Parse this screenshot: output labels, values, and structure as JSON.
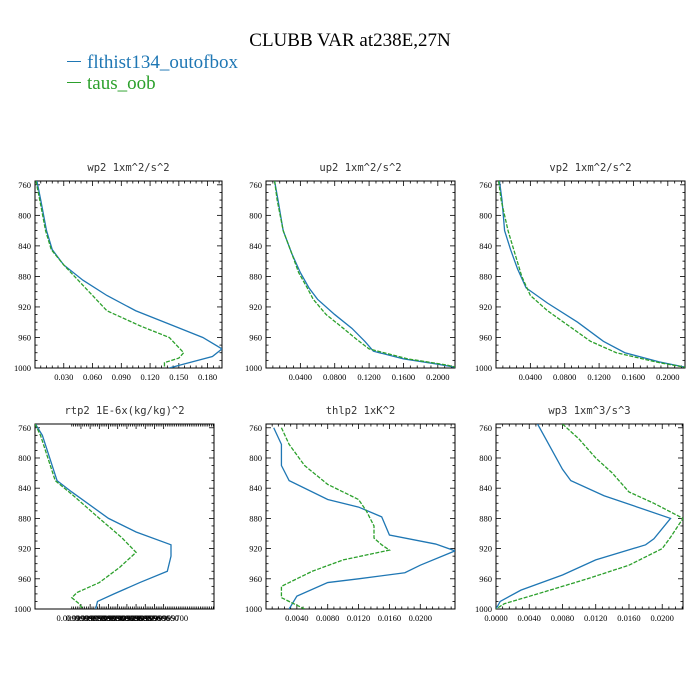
{
  "title": "CLUBB VAR at238E,27N",
  "legend": [
    {
      "label": "flthist134_outofbox",
      "color": "#1f77b4"
    },
    {
      "label": "taus_oob",
      "color": "#2ca02c",
      "dashed": true
    }
  ],
  "chart_data": [
    {
      "type": "line",
      "title": "wp2  1xm^2/s^2",
      "ylim": [
        1000,
        755
      ],
      "xlim": [
        0,
        0.195
      ],
      "yticks": [
        760,
        800,
        840,
        880,
        920,
        960,
        1000
      ],
      "xticks": [
        {
          "v": 0.03,
          "label": "0.030"
        },
        {
          "v": 0.06,
          "label": "0.060"
        },
        {
          "v": 0.09,
          "label": "0.090"
        },
        {
          "v": 0.12,
          "label": "0.120"
        },
        {
          "v": 0.15,
          "label": "0.150"
        },
        {
          "v": 0.18,
          "label": "0.180"
        }
      ],
      "series": [
        {
          "name": "flthist134_outofbox",
          "points": [
            [
              0.002,
              755
            ],
            [
              0.006,
              780
            ],
            [
              0.012,
              820
            ],
            [
              0.018,
              845
            ],
            [
              0.03,
              865
            ],
            [
              0.05,
              885
            ],
            [
              0.075,
              905
            ],
            [
              0.105,
              925
            ],
            [
              0.145,
              945
            ],
            [
              0.175,
              960
            ],
            [
              0.195,
              975
            ],
            [
              0.185,
              985
            ],
            [
              0.155,
              995
            ],
            [
              0.14,
              1000
            ]
          ]
        },
        {
          "name": "taus_oob",
          "points": [
            [
              0.001,
              755
            ],
            [
              0.005,
              780
            ],
            [
              0.011,
              820
            ],
            [
              0.017,
              845
            ],
            [
              0.03,
              865
            ],
            [
              0.045,
              885
            ],
            [
              0.06,
              905
            ],
            [
              0.075,
              925
            ],
            [
              0.11,
              945
            ],
            [
              0.14,
              960
            ],
            [
              0.155,
              980
            ],
            [
              0.15,
              987
            ],
            [
              0.135,
              993
            ],
            [
              0.135,
              1000
            ]
          ]
        }
      ]
    },
    {
      "type": "line",
      "title": "up2  1xm^2/s^2",
      "ylim": [
        1000,
        755
      ],
      "xlim": [
        0,
        0.22
      ],
      "yticks": [
        760,
        800,
        840,
        880,
        920,
        960,
        1000
      ],
      "xticks": [
        {
          "v": 0.04,
          "label": "0.0400"
        },
        {
          "v": 0.08,
          "label": "0.0800"
        },
        {
          "v": 0.12,
          "label": "0.1200"
        },
        {
          "v": 0.16,
          "label": "0.1600"
        },
        {
          "v": 0.2,
          "label": "0.2000"
        }
      ],
      "series": [
        {
          "name": "flthist134_outofbox",
          "points": [
            [
              0.01,
              755
            ],
            [
              0.014,
              780
            ],
            [
              0.02,
              820
            ],
            [
              0.03,
              850
            ],
            [
              0.04,
              875
            ],
            [
              0.05,
              895
            ],
            [
              0.06,
              910
            ],
            [
              0.08,
              930
            ],
            [
              0.1,
              948
            ],
            [
              0.115,
              965
            ],
            [
              0.125,
              978
            ],
            [
              0.16,
              988
            ],
            [
              0.2,
              995
            ],
            [
              0.225,
              1000
            ]
          ]
        },
        {
          "name": "taus_oob",
          "points": [
            [
              0.01,
              755
            ],
            [
              0.013,
              780
            ],
            [
              0.02,
              820
            ],
            [
              0.03,
              850
            ],
            [
              0.038,
              875
            ],
            [
              0.048,
              895
            ],
            [
              0.055,
              910
            ],
            [
              0.07,
              930
            ],
            [
              0.09,
              948
            ],
            [
              0.105,
              962
            ],
            [
              0.12,
              975
            ],
            [
              0.165,
              988
            ],
            [
              0.21,
              996
            ],
            [
              0.225,
              1000
            ]
          ]
        }
      ]
    },
    {
      "type": "line",
      "title": "vp2  1xm^2/s^2",
      "ylim": [
        1000,
        755
      ],
      "xlim": [
        0,
        0.22
      ],
      "yticks": [
        760,
        800,
        840,
        880,
        920,
        960,
        1000
      ],
      "xticks": [
        {
          "v": 0.04,
          "label": "0.0400"
        },
        {
          "v": 0.08,
          "label": "0.0800"
        },
        {
          "v": 0.12,
          "label": "0.1200"
        },
        {
          "v": 0.16,
          "label": "0.1600"
        },
        {
          "v": 0.2,
          "label": "0.2000"
        }
      ],
      "series": [
        {
          "name": "flthist134_outofbox",
          "points": [
            [
              0.004,
              755
            ],
            [
              0.007,
              780
            ],
            [
              0.01,
              820
            ],
            [
              0.017,
              845
            ],
            [
              0.025,
              870
            ],
            [
              0.035,
              895
            ],
            [
              0.06,
              915
            ],
            [
              0.095,
              940
            ],
            [
              0.125,
              965
            ],
            [
              0.15,
              980
            ],
            [
              0.19,
              992
            ],
            [
              0.225,
              1000
            ]
          ]
        },
        {
          "name": "taus_oob",
          "points": [
            [
              0.003,
              755
            ],
            [
              0.006,
              780
            ],
            [
              0.01,
              800
            ],
            [
              0.014,
              820
            ],
            [
              0.022,
              850
            ],
            [
              0.03,
              880
            ],
            [
              0.04,
              905
            ],
            [
              0.06,
              925
            ],
            [
              0.085,
              945
            ],
            [
              0.11,
              965
            ],
            [
              0.14,
              980
            ],
            [
              0.19,
              993
            ],
            [
              0.225,
              1000
            ]
          ]
        }
      ]
    },
    {
      "type": "line",
      "title": "rtp2  1E-6x(kg/kg)^2",
      "ylim": [
        1000,
        755
      ],
      "xlim": [
        0.0099999,
        0.0099999974
      ],
      "yticks": [
        760,
        800,
        840,
        880,
        920,
        960,
        1000
      ],
      "xticks": [
        {
          "v": 0.009999925,
          "label": "0.0099999250"
        },
        {
          "v": 0.00999993,
          "label": "0.0099999300"
        },
        {
          "v": 0.009999935,
          "label": "0.0099999350"
        },
        {
          "v": 0.00999994,
          "label": "0.0099999400"
        },
        {
          "v": 0.009999945,
          "label": "0.0099999450"
        },
        {
          "v": 0.00999995,
          "label": "0.0099999500"
        },
        {
          "v": 0.009999955,
          "label": "0.0099999550"
        },
        {
          "v": 0.00999996,
          "label": "0.0099999600"
        },
        {
          "v": 0.009999965,
          "label": "0.0099999650"
        },
        {
          "v": 0.00999997,
          "label": "0.0099999700"
        }
      ],
      "series": [
        {
          "name": "flthist134_outofbox",
          "points": [
            [
              0.0099999002,
              755
            ],
            [
              0.009999904,
              770
            ],
            [
              0.009999908,
              800
            ],
            [
              0.009999912,
              830
            ],
            [
              0.00999992,
              845
            ],
            [
              0.00999994,
              880
            ],
            [
              0.009999955,
              898
            ],
            [
              0.009999974,
              915
            ],
            [
              0.009999974,
              930
            ],
            [
              0.009999972,
              950
            ],
            [
              0.009999957,
              965
            ],
            [
              0.009999943,
              980
            ],
            [
              0.009999934,
              990
            ],
            [
              0.009999933,
              1000
            ]
          ]
        },
        {
          "name": "taus_oob",
          "points": [
            [
              0.0099999,
              755
            ],
            [
              0.009999903,
              770
            ],
            [
              0.009999907,
              800
            ],
            [
              0.009999911,
              830
            ],
            [
              0.00999992,
              848
            ],
            [
              0.009999935,
              880
            ],
            [
              0.009999947,
              905
            ],
            [
              0.009999955,
              925
            ],
            [
              0.009999946,
              945
            ],
            [
              0.009999935,
              965
            ],
            [
              0.009999923,
              978
            ],
            [
              0.00999992,
              985
            ],
            [
              0.009999924,
              993
            ],
            [
              0.009999926,
              1000
            ]
          ]
        }
      ]
    },
    {
      "type": "line",
      "title": "thlp2  1xK^2",
      "ylim": [
        1000,
        755
      ],
      "xlim": [
        0,
        0.0245
      ],
      "yticks": [
        760,
        800,
        840,
        880,
        920,
        960,
        1000
      ],
      "xticks": [
        {
          "v": 0.004,
          "label": "0.0040"
        },
        {
          "v": 0.008,
          "label": "0.0080"
        },
        {
          "v": 0.012,
          "label": "0.0120"
        },
        {
          "v": 0.016,
          "label": "0.0160"
        },
        {
          "v": 0.02,
          "label": "0.0200"
        }
      ],
      "series": [
        {
          "name": "flthist134_outofbox",
          "points": [
            [
              0.001,
              760
            ],
            [
              0.002,
              782
            ],
            [
              0.002,
              810
            ],
            [
              0.003,
              830
            ],
            [
              0.008,
              855
            ],
            [
              0.012,
              865
            ],
            [
              0.015,
              878
            ],
            [
              0.016,
              902
            ],
            [
              0.022,
              914
            ],
            [
              0.0245,
              923
            ],
            [
              0.02,
              942
            ],
            [
              0.018,
              952
            ],
            [
              0.012,
              960
            ],
            [
              0.008,
              965
            ],
            [
              0.004,
              983
            ],
            [
              0.003,
              1000
            ]
          ]
        },
        {
          "name": "taus_oob",
          "points": [
            [
              0.002,
              760
            ],
            [
              0.003,
              782
            ],
            [
              0.005,
              810
            ],
            [
              0.008,
              835
            ],
            [
              0.012,
              855
            ],
            [
              0.013,
              870
            ],
            [
              0.014,
              890
            ],
            [
              0.014,
              906
            ],
            [
              0.015,
              915
            ],
            [
              0.016,
              922
            ],
            [
              0.01,
              935
            ],
            [
              0.006,
              950
            ],
            [
              0.004,
              960
            ],
            [
              0.002,
              970
            ],
            [
              0.002,
              985
            ],
            [
              0.005,
              1000
            ]
          ]
        }
      ]
    },
    {
      "type": "line",
      "title": "wp3  1xm^3/s^3",
      "ylim": [
        1000,
        755
      ],
      "xlim": [
        0,
        0.0225
      ],
      "yticks": [
        760,
        800,
        840,
        880,
        920,
        960,
        1000
      ],
      "xticks": [
        {
          "v": 0.0,
          "label": "0.0000"
        },
        {
          "v": 0.004,
          "label": "0.0040"
        },
        {
          "v": 0.008,
          "label": "0.0080"
        },
        {
          "v": 0.012,
          "label": "0.0120"
        },
        {
          "v": 0.016,
          "label": "0.0160"
        },
        {
          "v": 0.02,
          "label": "0.0200"
        }
      ],
      "series": [
        {
          "name": "flthist134_outofbox",
          "points": [
            [
              0.005,
              755
            ],
            [
              0.006,
              775
            ],
            [
              0.007,
              795
            ],
            [
              0.008,
              815
            ],
            [
              0.009,
              830
            ],
            [
              0.013,
              850
            ],
            [
              0.021,
              880
            ],
            [
              0.019,
              907
            ],
            [
              0.018,
              915
            ],
            [
              0.012,
              935
            ],
            [
              0.008,
              955
            ],
            [
              0.003,
              975
            ],
            [
              0.0005,
              990
            ],
            [
              0.0,
              1000
            ]
          ]
        },
        {
          "name": "taus_oob",
          "points": [
            [
              0.008,
              755
            ],
            [
              0.01,
              775
            ],
            [
              0.012,
              800
            ],
            [
              0.014,
              820
            ],
            [
              0.016,
              845
            ],
            [
              0.019,
              860
            ],
            [
              0.0225,
              880
            ],
            [
              0.021,
              905
            ],
            [
              0.02,
              920
            ],
            [
              0.016,
              942
            ],
            [
              0.011,
              960
            ],
            [
              0.005,
              980
            ],
            [
              0.001,
              993
            ],
            [
              0.0,
              1000
            ]
          ]
        }
      ]
    }
  ]
}
